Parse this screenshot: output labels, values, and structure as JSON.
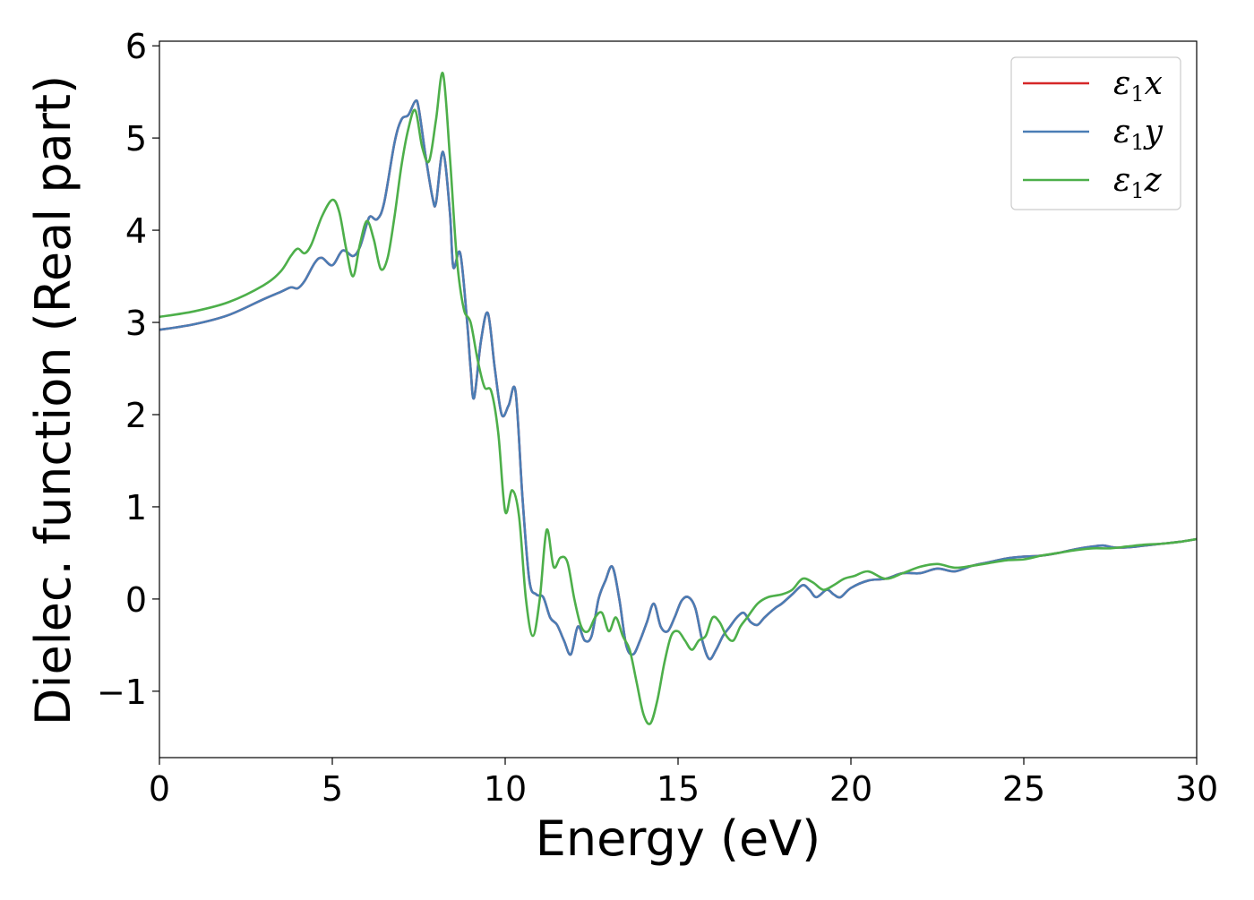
{
  "chart_data": {
    "type": "line",
    "title": "",
    "xlabel": "Energy (eV)",
    "ylabel": "Dielec. function (Real part)",
    "xlim": [
      0,
      30
    ],
    "ylim": [
      -1.72,
      6.05
    ],
    "xticks": [
      0,
      5,
      10,
      15,
      20,
      25,
      30
    ],
    "yticks": [
      -1,
      0,
      1,
      2,
      3,
      4,
      5,
      6
    ],
    "grid": false,
    "legend_position": "top-right",
    "series": [
      {
        "name": "ε1x",
        "legend_base": "ε",
        "legend_sub": "1",
        "legend_var": "x",
        "color": "#d62728",
        "x": [
          0,
          1,
          2,
          3,
          3.5,
          3.8,
          4.0,
          4.2,
          4.5,
          4.7,
          5.0,
          5.3,
          5.6,
          5.8,
          6.0,
          6.1,
          6.3,
          6.5,
          6.8,
          7.0,
          7.2,
          7.4,
          7.5,
          7.7,
          7.9,
          8.0,
          8.2,
          8.4,
          8.5,
          8.7,
          8.9,
          9.0,
          9.1,
          9.3,
          9.5,
          9.7,
          9.9,
          10.1,
          10.3,
          10.5,
          10.7,
          10.9,
          11.1,
          11.3,
          11.5,
          11.7,
          11.9,
          12.1,
          12.3,
          12.5,
          12.7,
          12.9,
          13.1,
          13.3,
          13.5,
          13.7,
          13.9,
          14.1,
          14.3,
          14.5,
          14.7,
          14.9,
          15.1,
          15.3,
          15.5,
          15.7,
          15.9,
          16.1,
          16.3,
          16.5,
          16.7,
          16.9,
          17.1,
          17.3,
          17.5,
          17.8,
          18.0,
          18.3,
          18.6,
          18.8,
          19.0,
          19.3,
          19.5,
          19.7,
          20.0,
          20.5,
          21.0,
          21.5,
          22.0,
          22.5,
          23.0,
          23.5,
          24.0,
          24.5,
          25.0,
          25.5,
          26.0,
          26.5,
          27.0,
          27.3,
          27.6,
          28.0,
          28.5,
          29.0,
          29.5,
          30.0
        ],
        "y": [
          2.92,
          2.98,
          3.08,
          3.25,
          3.33,
          3.38,
          3.37,
          3.45,
          3.65,
          3.7,
          3.62,
          3.78,
          3.72,
          3.82,
          4.07,
          4.15,
          4.12,
          4.3,
          4.95,
          5.2,
          5.25,
          5.4,
          5.32,
          4.8,
          4.35,
          4.3,
          4.85,
          4.2,
          3.6,
          3.75,
          3.0,
          2.5,
          2.18,
          2.8,
          3.1,
          2.5,
          2.0,
          2.1,
          2.25,
          1.1,
          0.2,
          0.05,
          0.02,
          -0.2,
          -0.28,
          -0.45,
          -0.6,
          -0.3,
          -0.45,
          -0.4,
          0.0,
          0.2,
          0.35,
          0.0,
          -0.5,
          -0.6,
          -0.45,
          -0.25,
          -0.05,
          -0.3,
          -0.35,
          -0.2,
          -0.02,
          0.02,
          -0.1,
          -0.45,
          -0.65,
          -0.55,
          -0.4,
          -0.3,
          -0.2,
          -0.15,
          -0.25,
          -0.28,
          -0.2,
          -0.1,
          -0.05,
          0.05,
          0.15,
          0.1,
          0.02,
          0.1,
          0.05,
          0.02,
          0.12,
          0.2,
          0.22,
          0.28,
          0.28,
          0.33,
          0.3,
          0.36,
          0.4,
          0.44,
          0.46,
          0.47,
          0.5,
          0.54,
          0.57,
          0.58,
          0.56,
          0.56,
          0.58,
          0.6,
          0.62,
          0.65
        ]
      },
      {
        "name": "ε1y",
        "legend_base": "ε",
        "legend_sub": "1",
        "legend_var": "y",
        "color": "#4a7db5",
        "x": [
          0,
          1,
          2,
          3,
          3.5,
          3.8,
          4.0,
          4.2,
          4.5,
          4.7,
          5.0,
          5.3,
          5.6,
          5.8,
          6.0,
          6.1,
          6.3,
          6.5,
          6.8,
          7.0,
          7.2,
          7.4,
          7.5,
          7.7,
          7.9,
          8.0,
          8.2,
          8.4,
          8.5,
          8.7,
          8.9,
          9.0,
          9.1,
          9.3,
          9.5,
          9.7,
          9.9,
          10.1,
          10.3,
          10.5,
          10.7,
          10.9,
          11.1,
          11.3,
          11.5,
          11.7,
          11.9,
          12.1,
          12.3,
          12.5,
          12.7,
          12.9,
          13.1,
          13.3,
          13.5,
          13.7,
          13.9,
          14.1,
          14.3,
          14.5,
          14.7,
          14.9,
          15.1,
          15.3,
          15.5,
          15.7,
          15.9,
          16.1,
          16.3,
          16.5,
          16.7,
          16.9,
          17.1,
          17.3,
          17.5,
          17.8,
          18.0,
          18.3,
          18.6,
          18.8,
          19.0,
          19.3,
          19.5,
          19.7,
          20.0,
          20.5,
          21.0,
          21.5,
          22.0,
          22.5,
          23.0,
          23.5,
          24.0,
          24.5,
          25.0,
          25.5,
          26.0,
          26.5,
          27.0,
          27.3,
          27.6,
          28.0,
          28.5,
          29.0,
          29.5,
          30.0
        ],
        "y": [
          2.92,
          2.98,
          3.08,
          3.25,
          3.33,
          3.38,
          3.37,
          3.45,
          3.65,
          3.7,
          3.62,
          3.78,
          3.72,
          3.82,
          4.07,
          4.15,
          4.12,
          4.3,
          4.95,
          5.2,
          5.25,
          5.4,
          5.32,
          4.8,
          4.35,
          4.3,
          4.85,
          4.2,
          3.6,
          3.75,
          3.0,
          2.5,
          2.18,
          2.8,
          3.1,
          2.5,
          2.0,
          2.1,
          2.25,
          1.1,
          0.2,
          0.05,
          0.02,
          -0.2,
          -0.28,
          -0.45,
          -0.6,
          -0.3,
          -0.45,
          -0.4,
          0.0,
          0.2,
          0.35,
          0.0,
          -0.5,
          -0.6,
          -0.45,
          -0.25,
          -0.05,
          -0.3,
          -0.35,
          -0.2,
          -0.02,
          0.02,
          -0.1,
          -0.45,
          -0.65,
          -0.55,
          -0.4,
          -0.3,
          -0.2,
          -0.15,
          -0.25,
          -0.28,
          -0.2,
          -0.1,
          -0.05,
          0.05,
          0.15,
          0.1,
          0.02,
          0.1,
          0.05,
          0.02,
          0.12,
          0.2,
          0.22,
          0.28,
          0.28,
          0.33,
          0.3,
          0.36,
          0.4,
          0.44,
          0.46,
          0.47,
          0.5,
          0.54,
          0.57,
          0.58,
          0.56,
          0.56,
          0.58,
          0.6,
          0.62,
          0.65
        ]
      },
      {
        "name": "ε1z",
        "legend_base": "ε",
        "legend_sub": "1",
        "legend_var": "z",
        "color": "#4daf4a",
        "x": [
          0,
          1,
          2,
          3,
          3.5,
          3.8,
          4.0,
          4.2,
          4.4,
          4.7,
          5.0,
          5.2,
          5.4,
          5.6,
          5.8,
          6.0,
          6.2,
          6.4,
          6.6,
          6.8,
          7.0,
          7.2,
          7.4,
          7.6,
          7.8,
          8.0,
          8.2,
          8.4,
          8.6,
          8.8,
          9.0,
          9.2,
          9.4,
          9.6,
          9.8,
          10.0,
          10.2,
          10.4,
          10.6,
          10.8,
          11.0,
          11.2,
          11.4,
          11.6,
          11.8,
          12.0,
          12.2,
          12.4,
          12.6,
          12.8,
          13.0,
          13.2,
          13.4,
          13.6,
          13.8,
          14.0,
          14.2,
          14.4,
          14.6,
          14.8,
          15.0,
          15.2,
          15.4,
          15.6,
          15.8,
          16.0,
          16.2,
          16.4,
          16.6,
          16.8,
          17.0,
          17.3,
          17.6,
          18.0,
          18.3,
          18.6,
          18.9,
          19.2,
          19.5,
          19.8,
          20.1,
          20.5,
          21.0,
          21.5,
          22.0,
          22.5,
          23.0,
          23.5,
          24.0,
          24.5,
          25.0,
          25.5,
          26.0,
          26.5,
          27.0,
          27.5,
          28.0,
          28.5,
          29.0,
          29.5,
          30.0
        ],
        "y": [
          3.06,
          3.12,
          3.22,
          3.4,
          3.55,
          3.72,
          3.8,
          3.75,
          3.85,
          4.15,
          4.33,
          4.2,
          3.8,
          3.5,
          3.85,
          4.1,
          3.9,
          3.58,
          3.7,
          4.15,
          4.7,
          5.1,
          5.3,
          4.9,
          4.75,
          5.2,
          5.7,
          4.8,
          3.7,
          3.15,
          3.0,
          2.6,
          2.3,
          2.25,
          1.8,
          0.95,
          1.18,
          0.9,
          0.0,
          -0.4,
          0.0,
          0.75,
          0.35,
          0.45,
          0.4,
          0.0,
          -0.3,
          -0.35,
          -0.2,
          -0.15,
          -0.35,
          -0.2,
          -0.4,
          -0.55,
          -0.9,
          -1.25,
          -1.35,
          -1.1,
          -0.7,
          -0.4,
          -0.35,
          -0.45,
          -0.55,
          -0.45,
          -0.4,
          -0.2,
          -0.25,
          -0.4,
          -0.45,
          -0.3,
          -0.2,
          -0.05,
          0.02,
          0.05,
          0.1,
          0.22,
          0.18,
          0.1,
          0.15,
          0.22,
          0.25,
          0.3,
          0.22,
          0.28,
          0.35,
          0.38,
          0.34,
          0.36,
          0.39,
          0.42,
          0.43,
          0.47,
          0.5,
          0.53,
          0.55,
          0.55,
          0.57,
          0.59,
          0.6,
          0.62,
          0.65
        ]
      }
    ]
  }
}
